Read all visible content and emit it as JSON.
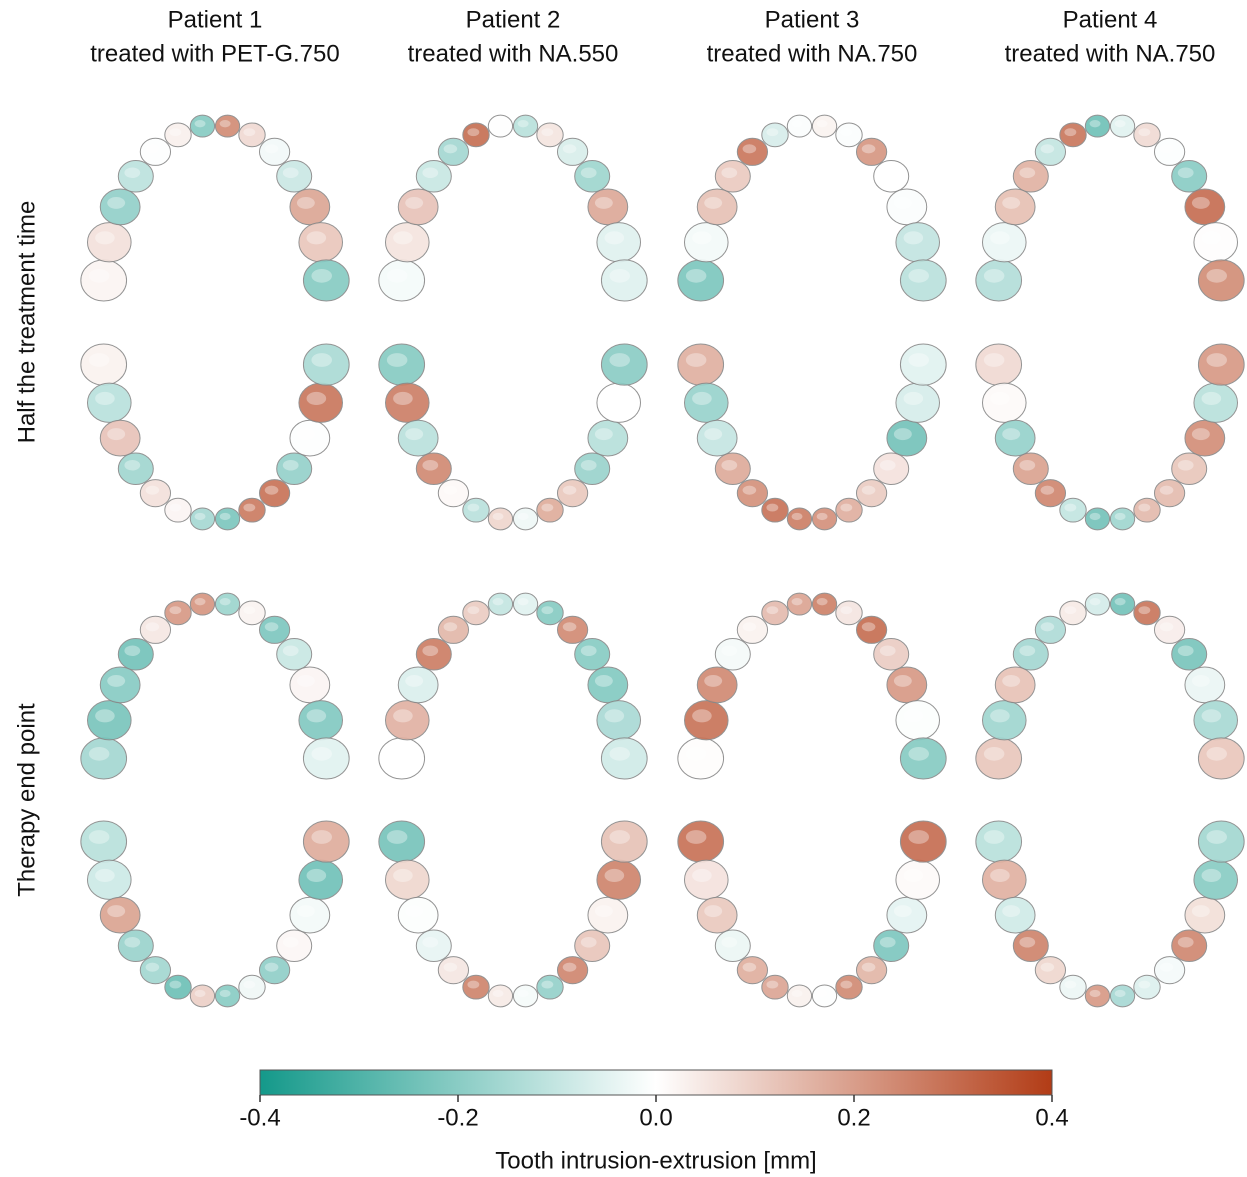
{
  "columns": [
    {
      "title": "Patient 1",
      "subtitle": "treated with PET-G.750"
    },
    {
      "title": "Patient 2",
      "subtitle": "treated with NA.550"
    },
    {
      "title": "Patient 3",
      "subtitle": "treated with NA.750"
    },
    {
      "title": "Patient 4",
      "subtitle": "treated with NA.750"
    }
  ],
  "rows": [
    "Half the treatment time",
    "Therapy end point"
  ],
  "colorbar": {
    "label": "Tooth intrusion-extrusion [mm]",
    "lim": [
      -0.4,
      0.4
    ],
    "ticks": [
      -0.4,
      -0.2,
      {
        "value": 0,
        "label": "0.0"
      },
      0.2,
      0.4
    ],
    "colors": [
      "#14998a",
      "#ffffff",
      "#b23c16"
    ]
  }
}
